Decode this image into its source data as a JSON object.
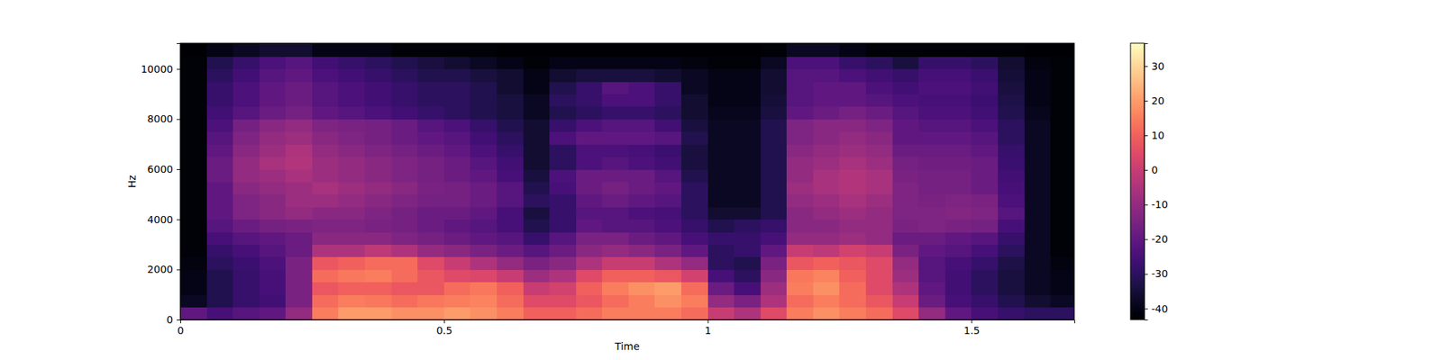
{
  "chart_data": {
    "type": "heatmap",
    "x_label": "Time",
    "y_label": "Hz",
    "color": "magma",
    "xlim": [
      0,
      1.695
    ],
    "ylim": [
      0,
      11025
    ],
    "xticks": [
      0,
      0.5,
      1,
      1.5
    ],
    "yticks": [
      0,
      2000,
      4000,
      6000,
      8000,
      10000
    ],
    "x_edges": [
      0,
      0.05,
      0.1,
      0.15,
      0.2,
      0.25,
      0.3,
      0.35,
      0.4,
      0.45,
      0.5,
      0.55,
      0.6,
      0.65,
      0.7,
      0.75,
      0.8,
      0.85,
      0.9,
      0.95,
      1.0,
      1.05,
      1.1,
      1.15,
      1.2,
      1.25,
      1.3,
      1.35,
      1.4,
      1.45,
      1.5,
      1.55,
      1.6,
      1.65,
      1.695
    ],
    "y_edges": [
      0,
      500,
      1000,
      1500,
      2000,
      2500,
      3000,
      3500,
      4000,
      4500,
      5000,
      5500,
      6000,
      6500,
      7000,
      7500,
      8000,
      8500,
      9000,
      9500,
      10000,
      10500,
      11000
    ],
    "cells": [
      [
        -20,
        -25,
        -22,
        -20,
        -10,
        15,
        20,
        20,
        18,
        18,
        20,
        18,
        15,
        10,
        10,
        12,
        15,
        15,
        15,
        12,
        0,
        -5,
        5,
        15,
        18,
        15,
        12,
        5,
        -10,
        -20,
        -25,
        -28,
        -30,
        -30
      ],
      [
        -38,
        -32,
        -28,
        -26,
        -15,
        12,
        15,
        14,
        12,
        14,
        15,
        16,
        12,
        5,
        5,
        8,
        12,
        15,
        18,
        15,
        -10,
        -15,
        -5,
        12,
        15,
        12,
        8,
        0,
        -18,
        -25,
        -28,
        -32,
        -36,
        -38
      ],
      [
        -40,
        -32,
        -28,
        -25,
        -15,
        8,
        10,
        10,
        8,
        8,
        12,
        14,
        10,
        0,
        2,
        10,
        15,
        18,
        20,
        12,
        -18,
        -25,
        -8,
        15,
        18,
        12,
        5,
        -5,
        -20,
        -26,
        -30,
        -34,
        -38,
        -40
      ],
      [
        -40,
        -32,
        -28,
        -25,
        -15,
        12,
        14,
        15,
        12,
        8,
        5,
        4,
        0,
        -8,
        -5,
        5,
        10,
        10,
        8,
        2,
        -25,
        -30,
        -12,
        14,
        16,
        10,
        5,
        -8,
        -22,
        -26,
        -30,
        -34,
        -38,
        -40
      ],
      [
        -41,
        -30,
        -27,
        -24,
        -15,
        8,
        10,
        12,
        12,
        5,
        0,
        -5,
        -10,
        -15,
        -12,
        -5,
        0,
        0,
        -5,
        -10,
        -30,
        -32,
        -15,
        8,
        10,
        8,
        5,
        -10,
        -22,
        -25,
        -28,
        -33,
        -38,
        -41
      ],
      [
        -42,
        -28,
        -25,
        -22,
        -18,
        -5,
        -5,
        -2,
        -5,
        -10,
        -12,
        -15,
        -18,
        -22,
        -18,
        -12,
        -10,
        -12,
        -15,
        -20,
        -30,
        -28,
        -20,
        0,
        -2,
        2,
        0,
        -15,
        -20,
        -22,
        -25,
        -30,
        -38,
        -42
      ],
      [
        -42,
        -25,
        -22,
        -20,
        -18,
        -12,
        -12,
        -12,
        -14,
        -16,
        -18,
        -20,
        -22,
        -28,
        -22,
        -15,
        -15,
        -18,
        -20,
        -25,
        -28,
        -28,
        -25,
        -10,
        -10,
        -8,
        -10,
        -18,
        -18,
        -20,
        -22,
        -28,
        -38,
        -42
      ],
      [
        -42,
        -22,
        -18,
        -16,
        -15,
        -14,
        -14,
        -15,
        -16,
        -18,
        -20,
        -22,
        -25,
        -32,
        -28,
        -20,
        -22,
        -22,
        -24,
        -28,
        -32,
        -30,
        -28,
        -12,
        -12,
        -10,
        -10,
        -15,
        -14,
        -15,
        -16,
        -25,
        -38,
        -42
      ],
      [
        -42,
        -20,
        -14,
        -12,
        -10,
        -12,
        -12,
        -14,
        -16,
        -18,
        -18,
        -20,
        -25,
        -34,
        -28,
        -22,
        -22,
        -24,
        -25,
        -30,
        -36,
        -36,
        -32,
        -12,
        -10,
        -8,
        -10,
        -14,
        -14,
        -13,
        -14,
        -22,
        -38,
        -42
      ],
      [
        -42,
        -20,
        -14,
        -12,
        -8,
        -8,
        -10,
        -12,
        -14,
        -16,
        -16,
        -18,
        -22,
        -30,
        -28,
        -20,
        -18,
        -20,
        -22,
        -30,
        -38,
        -38,
        -32,
        -10,
        -8,
        -6,
        -8,
        -14,
        -15,
        -14,
        -15,
        -24,
        -38,
        -42
      ],
      [
        -42,
        -20,
        -12,
        -10,
        -8,
        -6,
        -8,
        -10,
        -12,
        -15,
        -16,
        -18,
        -22,
        -32,
        -25,
        -18,
        -16,
        -18,
        -20,
        -30,
        -38,
        -38,
        -32,
        -8,
        -6,
        -4,
        -6,
        -14,
        -16,
        -16,
        -18,
        -25,
        -38,
        -42
      ],
      [
        -42,
        -18,
        -10,
        -8,
        -6,
        -8,
        -10,
        -12,
        -14,
        -16,
        -18,
        -20,
        -25,
        -34,
        -24,
        -18,
        -18,
        -18,
        -22,
        -32,
        -38,
        -38,
        -32,
        -10,
        -6,
        -4,
        -6,
        -15,
        -16,
        -16,
        -18,
        -26,
        -38,
        -42
      ],
      [
        -42,
        -18,
        -10,
        -6,
        -4,
        -8,
        -10,
        -12,
        -14,
        -16,
        -18,
        -22,
        -26,
        -36,
        -30,
        -24,
        -22,
        -24,
        -26,
        -34,
        -38,
        -38,
        -32,
        -10,
        -8,
        -6,
        -8,
        -16,
        -17,
        -17,
        -18,
        -27,
        -38,
        -42
      ],
      [
        -42,
        -20,
        -12,
        -8,
        -5,
        -10,
        -12,
        -14,
        -16,
        -18,
        -20,
        -24,
        -28,
        -36,
        -30,
        -24,
        -24,
        -25,
        -27,
        -34,
        -38,
        -38,
        -32,
        -12,
        -10,
        -8,
        -10,
        -18,
        -18,
        -18,
        -20,
        -28,
        -38,
        -42
      ],
      [
        -42,
        -22,
        -14,
        -10,
        -8,
        -12,
        -14,
        -16,
        -18,
        -20,
        -22,
        -26,
        -30,
        -36,
        -24,
        -20,
        -20,
        -20,
        -22,
        -32,
        -38,
        -38,
        -32,
        -14,
        -12,
        -10,
        -12,
        -20,
        -20,
        -20,
        -22,
        -30,
        -38,
        -42
      ],
      [
        -42,
        -24,
        -16,
        -12,
        -10,
        -14,
        -15,
        -16,
        -18,
        -22,
        -24,
        -28,
        -32,
        -36,
        -28,
        -24,
        -22,
        -22,
        -26,
        -34,
        -38,
        -38,
        -32,
        -14,
        -12,
        -12,
        -14,
        -20,
        -22,
        -22,
        -24,
        -30,
        -38,
        -42
      ],
      [
        -42,
        -26,
        -22,
        -18,
        -16,
        -20,
        -22,
        -24,
        -26,
        -28,
        -30,
        -32,
        -34,
        -38,
        -32,
        -30,
        -28,
        -28,
        -30,
        -36,
        -39,
        -39,
        -34,
        -20,
        -18,
        -16,
        -18,
        -22,
        -24,
        -24,
        -26,
        -32,
        -39,
        -42
      ],
      [
        -42,
        -28,
        -24,
        -20,
        -18,
        -22,
        -24,
        -26,
        -28,
        -30,
        -30,
        -32,
        -34,
        -38,
        -30,
        -28,
        -24,
        -24,
        -28,
        -36,
        -40,
        -40,
        -35,
        -22,
        -20,
        -20,
        -22,
        -24,
        -25,
        -25,
        -27,
        -33,
        -40,
        -42
      ],
      [
        -42,
        -28,
        -24,
        -20,
        -18,
        -22,
        -24,
        -26,
        -28,
        -30,
        -30,
        -32,
        -36,
        -40,
        -32,
        -28,
        -22,
        -24,
        -28,
        -38,
        -40,
        -40,
        -36,
        -22,
        -20,
        -20,
        -24,
        -26,
        -24,
        -24,
        -26,
        -34,
        -40,
        -42
      ],
      [
        -42,
        -30,
        -26,
        -22,
        -20,
        -24,
        -26,
        -28,
        -30,
        -32,
        -32,
        -34,
        -36,
        -40,
        -36,
        -34,
        -34,
        -34,
        -36,
        -38,
        -40,
        -40,
        -36,
        -22,
        -22,
        -24,
        -26,
        -28,
        -25,
        -25,
        -27,
        -35,
        -40,
        -42
      ],
      [
        -42,
        -32,
        -28,
        -24,
        -22,
        -26,
        -28,
        -30,
        -32,
        -34,
        -36,
        -38,
        -40,
        -42,
        -40,
        -40,
        -40,
        -40,
        -40,
        -41,
        -42,
        -42,
        -38,
        -24,
        -24,
        -28,
        -30,
        -34,
        -28,
        -28,
        -30,
        -36,
        -41,
        -42
      ],
      [
        -43,
        -40,
        -38,
        -36,
        -36,
        -40,
        -40,
        -40,
        -42,
        -42,
        -42,
        -42,
        -43,
        -43,
        -43,
        -43,
        -43,
        -43,
        -43,
        -43,
        -43,
        -43,
        -42,
        -38,
        -38,
        -40,
        -42,
        -42,
        -42,
        -42,
        -42,
        -42,
        -43,
        -43
      ]
    ],
    "colorbar": {
      "range": [
        -43.2,
        36.6
      ],
      "ticks": [
        -40,
        -30,
        -20,
        -10,
        0,
        10,
        20,
        30
      ]
    }
  }
}
